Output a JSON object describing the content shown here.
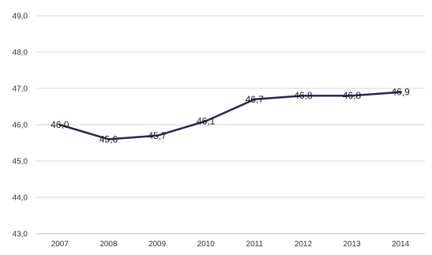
{
  "chart_data": {
    "type": "line",
    "title": "",
    "xlabel": "",
    "ylabel": "",
    "categories": [
      "2007",
      "2008",
      "2009",
      "2010",
      "2011",
      "2012",
      "2013",
      "2014"
    ],
    "series": [
      {
        "values": [
          46.0,
          45.6,
          45.7,
          46.1,
          46.7,
          46.8,
          46.8,
          46.9
        ],
        "labels": [
          "46,0",
          "45,6",
          "45,7",
          "46,1",
          "46,7",
          "46,8",
          "46,8",
          "46,9"
        ],
        "color": "#1f2a55"
      }
    ],
    "ylim": [
      43.0,
      49.0
    ],
    "yticks": [
      43.0,
      44.0,
      45.0,
      46.0,
      47.0,
      48.0,
      49.0
    ],
    "ytick_labels": [
      "43,0",
      "44,0",
      "45,0",
      "46,0",
      "47,0",
      "48,0",
      "49,0"
    ],
    "grid": true,
    "legend": "none",
    "gridline_color": "#d9d9d9",
    "axis_color": "#bfbfbf"
  }
}
